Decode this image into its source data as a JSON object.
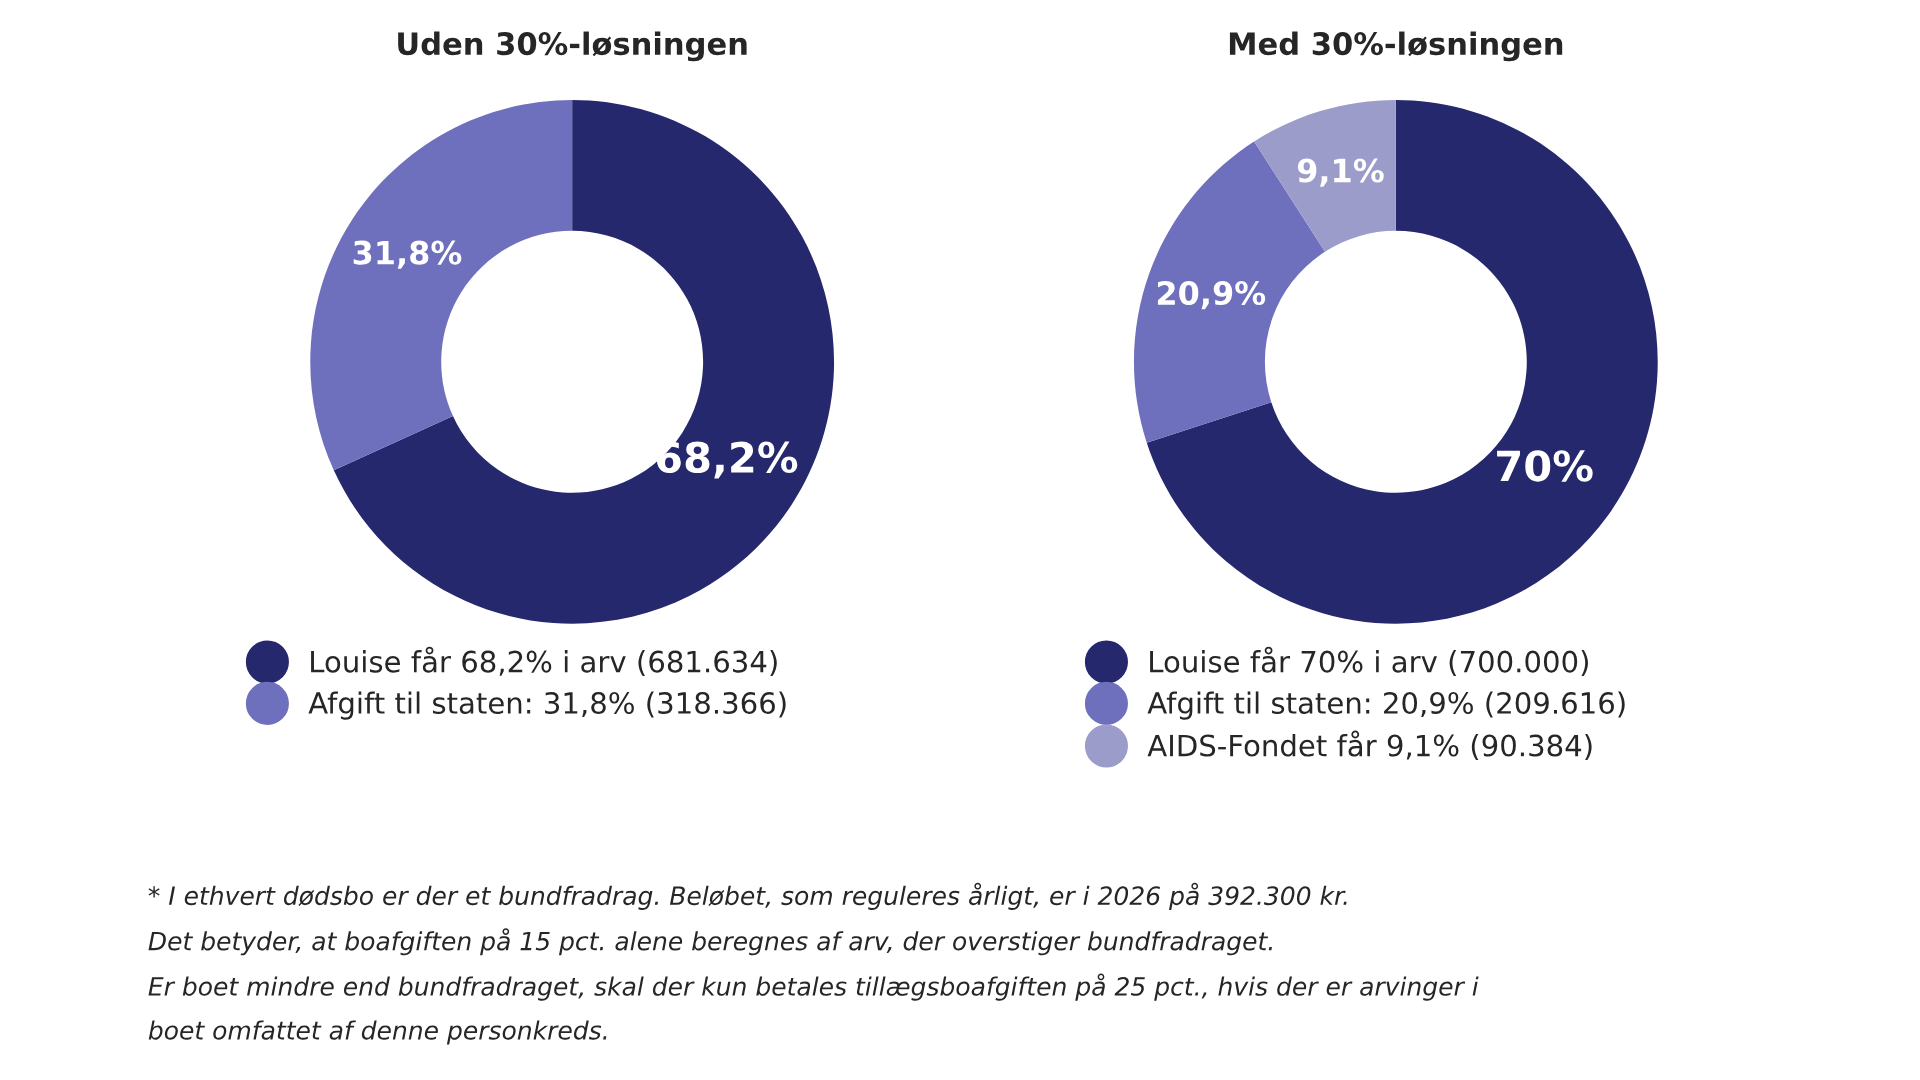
{
  "chart_data": [
    {
      "type": "donut",
      "title": "Uden 30%-løsningen",
      "categories": [
        "Louise får 68,2% i arv (681.634)",
        "Afgift til staten: 31,8% (318.366)"
      ],
      "values": [
        68.2,
        31.8
      ],
      "value_labels": [
        "68,2%",
        "31,8%"
      ],
      "colors": [
        "#26286e",
        "#6e70bd"
      ],
      "legend": "bottom"
    },
    {
      "type": "donut",
      "title": "Med 30%-løsningen",
      "categories": [
        "Louise får 70% i arv (700.000)",
        "Afgift til staten: 20,9% (209.616)",
        "AIDS-Fondet får 9,1% (90.384)"
      ],
      "values": [
        70,
        20.9,
        9.1
      ],
      "value_labels": [
        "70%",
        "20,9%",
        "9,1%"
      ],
      "colors": [
        "#26286e",
        "#6e70bd",
        "#9c9ccb"
      ],
      "legend": "bottom",
      "annotations": [
        "* I ethvert dødsbo er der et bundfradrag. Beløbet, som reguleres årligt, er i 2026 på 392.300 kr.",
        "Det betyder, at boafgiften på 15 pct. alene beregnes af arv, der overstiger bundfradraget.",
        "Er boet mindre end bundfradraget, skal der kun betales tillægsboafgiften på 25 pct., hvis der er arvinger i",
        "boet omfattet af denne personkreds."
      ]
    }
  ]
}
